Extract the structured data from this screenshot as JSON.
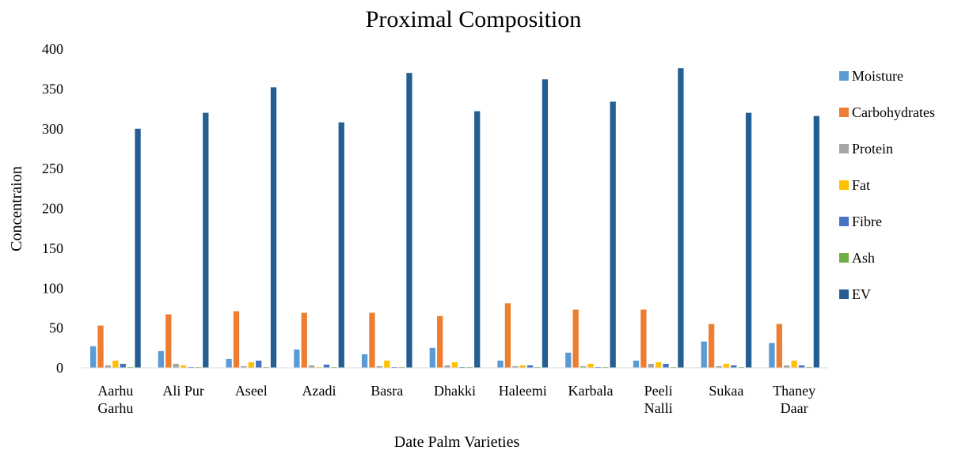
{
  "chart_data": {
    "type": "bar",
    "title": "Proximal Composition",
    "xlabel": "Date Palm Varieties",
    "ylabel": "Concentraion",
    "ylim": [
      0,
      400
    ],
    "yticks": [
      0,
      50,
      100,
      150,
      200,
      250,
      300,
      350,
      400
    ],
    "grid": false,
    "legend_position": "right",
    "categories": [
      [
        "Aarhu",
        "Garhu"
      ],
      [
        "Ali Pur"
      ],
      [
        "Aseel"
      ],
      [
        "Azadi"
      ],
      [
        "Basra"
      ],
      [
        "Dhakki"
      ],
      [
        "Haleemi"
      ],
      [
        "Karbala"
      ],
      [
        "Peeli",
        "Nalli"
      ],
      [
        "Sukaa"
      ],
      [
        "Thaney",
        "Daar"
      ]
    ],
    "series": [
      {
        "name": "Moisture",
        "color": "#5b9bd5",
        "values": [
          27,
          21,
          11,
          23,
          17,
          25,
          9,
          19,
          9,
          33,
          31
        ]
      },
      {
        "name": "Carbohydrates",
        "color": "#ed7d31",
        "values": [
          53,
          67,
          71,
          69,
          69,
          65,
          81,
          73,
          73,
          55,
          55
        ]
      },
      {
        "name": "Protein",
        "color": "#a5a5a5",
        "values": [
          3,
          5,
          2,
          3,
          2,
          3,
          2,
          2,
          5,
          2,
          3
        ]
      },
      {
        "name": "Fat",
        "color": "#ffc000",
        "values": [
          9,
          3,
          7,
          1,
          9,
          7,
          3,
          5,
          7,
          5,
          9
        ]
      },
      {
        "name": "Fibre",
        "color": "#4472c4",
        "values": [
          5,
          1,
          9,
          4,
          1,
          1,
          3,
          1,
          5,
          3,
          3
        ]
      },
      {
        "name": "Ash",
        "color": "#70ad47",
        "values": [
          1,
          1,
          1,
          1,
          1,
          1,
          1,
          1,
          1,
          1,
          1
        ]
      },
      {
        "name": "EV",
        "color": "#255e91",
        "values": [
          300,
          320,
          352,
          308,
          370,
          322,
          362,
          334,
          376,
          320,
          316
        ]
      }
    ]
  }
}
